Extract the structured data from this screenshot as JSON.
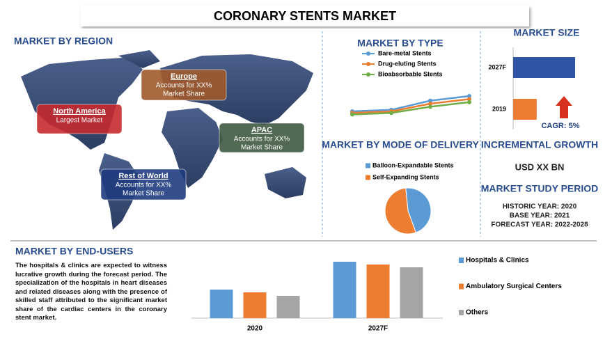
{
  "title": "CORONARY STENTS MARKET",
  "region": {
    "heading": "MARKET BY REGION",
    "callouts": [
      {
        "name": "North America",
        "text": [
          "Largest Market"
        ],
        "color": "#c62a2f"
      },
      {
        "name": "Europe",
        "text": [
          "Accounts for XX%",
          "Market Share"
        ],
        "color": "#a05a2c"
      },
      {
        "name": "APAC",
        "text": [
          "Accounts for XX%",
          "Market Share"
        ],
        "color": "#3f5a40"
      },
      {
        "name": "Rest of World",
        "text": [
          "Accounts for XX%",
          "Market Share"
        ],
        "color": "#1f3c7f"
      }
    ]
  },
  "by_type": {
    "heading": "MARKET BY TYPE",
    "chart_data": {
      "type": "line",
      "series": [
        {
          "name": "Bare-metal Stents",
          "color": "#5b9bd5",
          "values": [
            10,
            11,
            17,
            20
          ]
        },
        {
          "name": "Drug-eluting Stents",
          "color": "#ed7d31",
          "values": [
            9,
            10,
            15,
            18
          ]
        },
        {
          "name": "Bioabsorbable Stents",
          "color": "#70ad47",
          "values": [
            8,
            9,
            13,
            16
          ]
        }
      ]
    }
  },
  "delivery": {
    "heading": "MARKET BY MODE OF DELIVERY",
    "chart_data": {
      "type": "pie",
      "categories": [
        "Balloon-Expandable Stents",
        "Self-Expanding Stents"
      ],
      "values": [
        46,
        54
      ],
      "colors": [
        "#5b9bd5",
        "#ed7d31"
      ]
    }
  },
  "size": {
    "heading": "MARKET SIZE",
    "chart_data": {
      "type": "hbar",
      "categories": [
        "2027F",
        "2019"
      ],
      "values": [
        100,
        38
      ],
      "colors": [
        "#2f55a4",
        "#ed7d31"
      ]
    },
    "cagr": "CAGR: 5%"
  },
  "growth": {
    "heading": "INCREMENTAL GROWTH",
    "value": "USD XX BN"
  },
  "period": {
    "heading": "MARKET STUDY PERIOD",
    "lines": [
      "HISTORIC YEAR: 2020",
      "BASE YEAR: 2021",
      "FORECAST YEAR: 2022-2028"
    ]
  },
  "end_users": {
    "heading": "MARKET BY END-USERS",
    "text": "The hospitals & clinics are expected to witness lucrative growth during the forecast period. The specialization of the hospitals in heart diseases and related diseases along with the presence of skilled staff attributed to the significant market share of the cardiac centers in the coronary stent market.",
    "chart_data": {
      "type": "bar",
      "categories": [
        "2020",
        "2027F"
      ],
      "series": [
        {
          "name": "Hospitals & Clinics",
          "color": "#5b9bd5",
          "values": [
            41,
            81
          ]
        },
        {
          "name": "Ambulatory Surgical Centers",
          "color": "#ed7d31",
          "values": [
            37,
            77
          ]
        },
        {
          "name": "Others",
          "color": "#a5a5a5",
          "values": [
            32,
            73
          ]
        }
      ]
    }
  }
}
